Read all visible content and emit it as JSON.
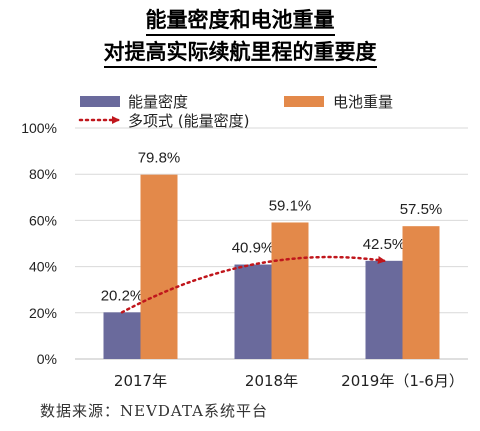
{
  "title_lines": [
    "能量密度和电池重量",
    "对提高实际续航里程的重要度"
  ],
  "source": "数据来源：NEVDATA系统平台",
  "colors": {
    "energy_density": "#6a6a9c",
    "battery_weight": "#e3894a",
    "trendline": "#c0161c",
    "grid": "#d9d9d9",
    "axis": "#bfbfbf"
  },
  "chart_data": {
    "type": "bar",
    "categories": [
      "2017年",
      "2018年",
      "2019年（1-6月）"
    ],
    "series": [
      {
        "name": "能量密度",
        "values": [
          20.2,
          40.9,
          42.5
        ],
        "labels": [
          "20.2%",
          "40.9%",
          "42.5%"
        ]
      },
      {
        "name": "电池重量",
        "values": [
          79.8,
          59.1,
          57.5
        ],
        "labels": [
          "79.8%",
          "59.1%",
          "57.5%"
        ]
      }
    ],
    "trendline": {
      "name": "多项式 (能量密度)",
      "of_series": "能量密度",
      "style": "dotted",
      "arrow": true
    },
    "ylim": [
      0,
      100
    ],
    "yticks": [
      0,
      20,
      40,
      60,
      80,
      100
    ],
    "ytick_labels": [
      "0%",
      "20%",
      "40%",
      "60%",
      "80%",
      "100%"
    ],
    "grid": true,
    "legend_position": "top-left"
  }
}
